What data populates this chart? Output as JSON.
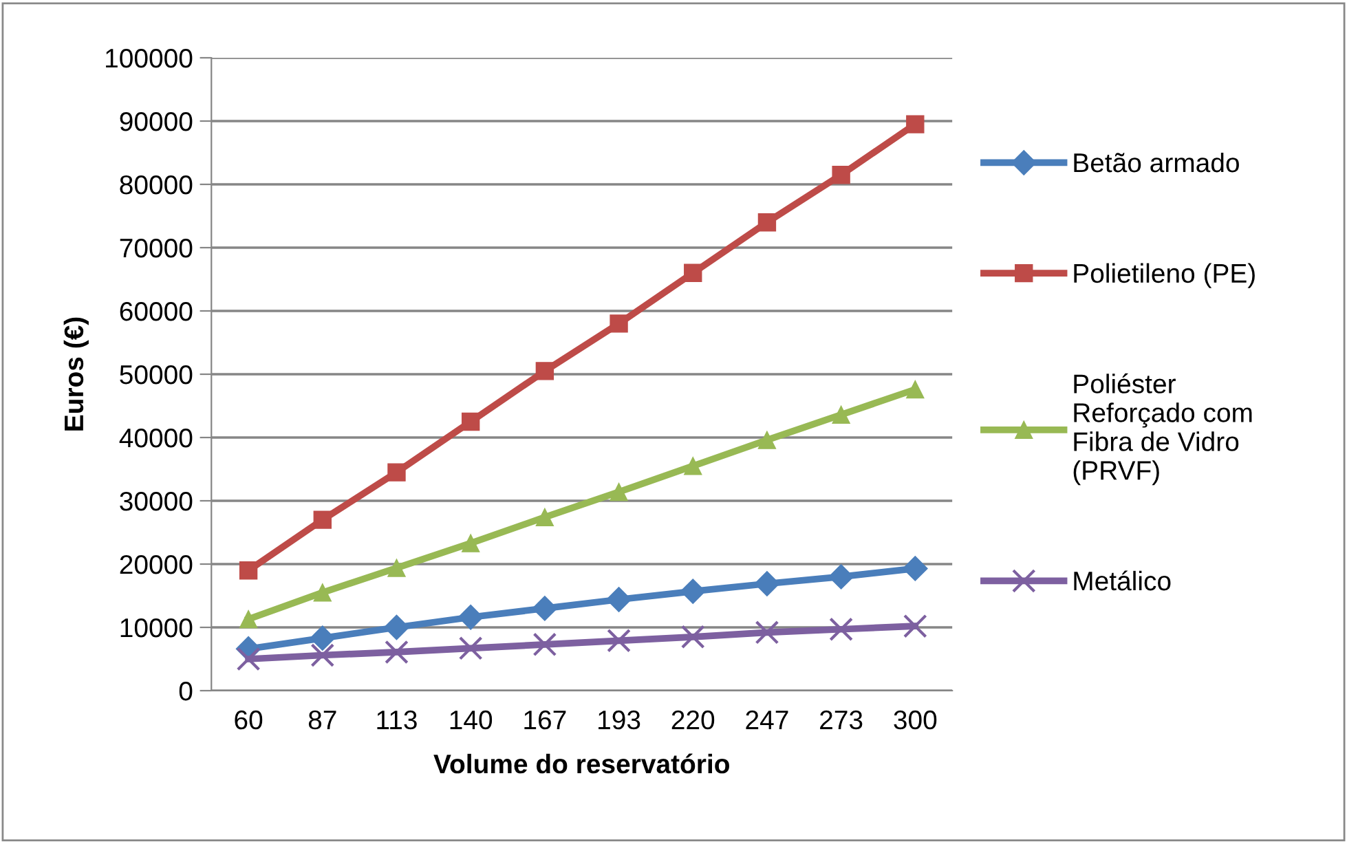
{
  "chart_data": {
    "type": "line",
    "xlabel": "Volume do reservatório",
    "ylabel": "Euros (€)",
    "categories": [
      "60",
      "87",
      "113",
      "140",
      "167",
      "193",
      "220",
      "247",
      "273",
      "300"
    ],
    "series": [
      {
        "name": "Betão armado",
        "color": "#4a7ebb",
        "marker": "diamond",
        "values": [
          6600,
          8300,
          10000,
          11600,
          13000,
          14400,
          15700,
          16900,
          18000,
          19300
        ]
      },
      {
        "name": "Polietileno (PE)",
        "color": "#be4b48",
        "marker": "square",
        "values": [
          19000,
          27000,
          34500,
          42500,
          50500,
          58000,
          66000,
          74000,
          81500,
          89500
        ]
      },
      {
        "name": "Poliéster Reforçado com Fibra de Vidro (PRVF)",
        "color": "#98b954",
        "marker": "triangle",
        "values": [
          11300,
          15500,
          19400,
          23300,
          27400,
          31400,
          35500,
          39600,
          43600,
          47600
        ]
      },
      {
        "name": "Metálico",
        "color": "#7d60a0",
        "marker": "cross",
        "values": [
          5000,
          5600,
          6100,
          6700,
          7300,
          7900,
          8500,
          9200,
          9700,
          10200
        ]
      }
    ],
    "ylim": [
      0,
      100000
    ],
    "yticks": [
      0,
      10000,
      20000,
      30000,
      40000,
      50000,
      60000,
      70000,
      80000,
      90000,
      100000
    ],
    "grid": "y",
    "legend": "right",
    "line_style": "solid"
  }
}
